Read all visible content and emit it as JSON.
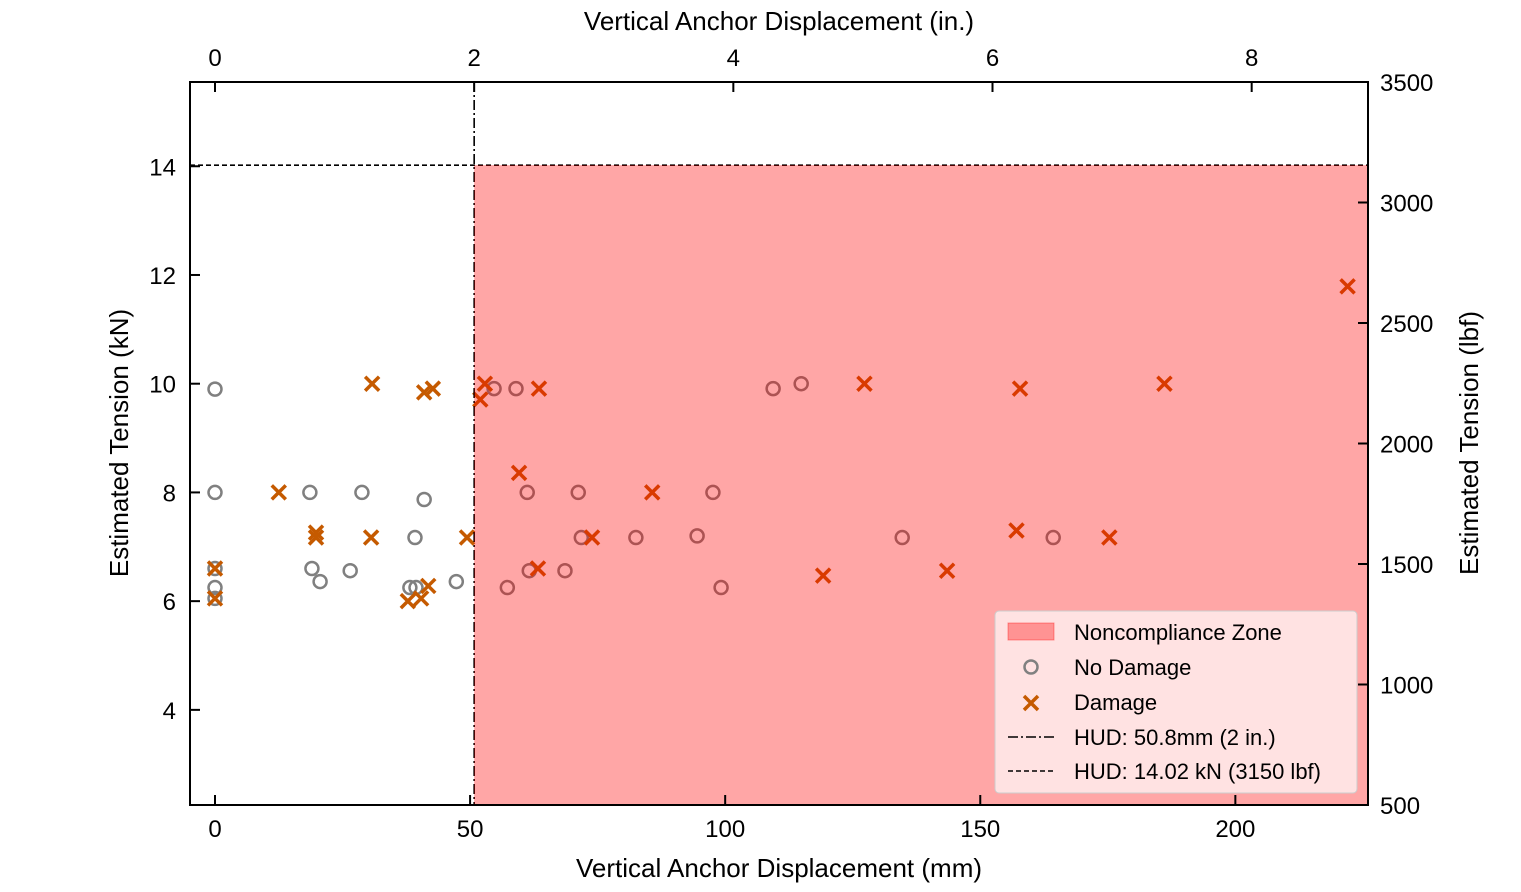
{
  "chart_data": {
    "type": "scatter",
    "xlabel": "Vertical Anchor Displacement (mm)",
    "x2label": "Vertical Anchor Displacement (in.)",
    "ylabel": "Estimated Tension (kN)",
    "y2label": "Estimated Tension (lbf)",
    "xlim": [
      -4.9,
      226
    ],
    "ylim": [
      2.25,
      15.55
    ],
    "y2lim": [
      500,
      3500
    ],
    "xticks": [
      0,
      50,
      100,
      150,
      200
    ],
    "x2ticks": [
      0,
      2,
      4,
      6,
      8
    ],
    "yticks": [
      4,
      6,
      8,
      10,
      12,
      14
    ],
    "y2ticks": [
      500,
      1000,
      1500,
      2000,
      2500,
      3000,
      3500
    ],
    "grid": false,
    "legend_position": "bottom-right",
    "colors": {
      "no_damage": "#808080",
      "damage": "#c55a00",
      "zone": "#ff0000",
      "zone_edge": "#8b0000"
    },
    "zone": {
      "name": "Noncompliance Zone",
      "x_from": 50.8,
      "y_to": 14.02
    },
    "reference_lines": [
      {
        "name": "HUD: 50.8mm (2 in.)",
        "orientation": "vertical",
        "value": 50.8,
        "style": "dashdot"
      },
      {
        "name": "HUD: 14.02 kN (3150 lbf)",
        "orientation": "horizontal",
        "value": 14.02,
        "style": "dashed"
      }
    ],
    "series": [
      {
        "name": "No Damage",
        "marker": "circle",
        "points": [
          [
            0,
            9.9
          ],
          [
            0,
            8.0
          ],
          [
            0,
            6.6
          ],
          [
            0,
            6.25
          ],
          [
            0,
            6.05
          ],
          [
            18.6,
            8.0
          ],
          [
            28.8,
            8.0
          ],
          [
            41,
            7.87
          ],
          [
            39.2,
            7.17
          ],
          [
            19,
            6.6
          ],
          [
            20.6,
            6.36
          ],
          [
            26.5,
            6.56
          ],
          [
            38.2,
            6.25
          ],
          [
            39.4,
            6.25
          ],
          [
            47.3,
            6.36
          ],
          [
            54.7,
            9.91
          ],
          [
            59,
            9.91
          ],
          [
            61.2,
            8.0
          ],
          [
            61.6,
            6.56
          ],
          [
            57.3,
            6.25
          ],
          [
            68.6,
            6.56
          ],
          [
            71.2,
            8.0
          ],
          [
            71.8,
            7.17
          ],
          [
            82.5,
            7.17
          ],
          [
            94.5,
            7.2
          ],
          [
            97.6,
            8.0
          ],
          [
            99.2,
            6.25
          ],
          [
            109.4,
            9.91
          ],
          [
            114.9,
            10.0
          ],
          [
            134.7,
            7.17
          ],
          [
            164.3,
            7.17
          ]
        ]
      },
      {
        "name": "Damage",
        "marker": "x",
        "points": [
          [
            0,
            6.6
          ],
          [
            0,
            6.05
          ],
          [
            12.5,
            8.0
          ],
          [
            19.8,
            7.26
          ],
          [
            19.8,
            7.17
          ],
          [
            30.8,
            10.0
          ],
          [
            30.6,
            7.17
          ],
          [
            41,
            9.84
          ],
          [
            42.7,
            9.91
          ],
          [
            37.8,
            6.0
          ],
          [
            40.4,
            6.05
          ],
          [
            41.8,
            6.28
          ],
          [
            49.4,
            7.17
          ],
          [
            52,
            9.71
          ],
          [
            52.9,
            10.0
          ],
          [
            59.6,
            8.36
          ],
          [
            63.5,
            9.91
          ],
          [
            63.3,
            6.6
          ],
          [
            73.9,
            7.17
          ],
          [
            85.7,
            8.0
          ],
          [
            119.2,
            6.47
          ],
          [
            127.3,
            10.0
          ],
          [
            143.5,
            6.56
          ],
          [
            157.1,
            7.3
          ],
          [
            157.8,
            9.91
          ],
          [
            175.3,
            7.17
          ],
          [
            186.1,
            10.0
          ],
          [
            222,
            11.79
          ]
        ]
      }
    ]
  }
}
